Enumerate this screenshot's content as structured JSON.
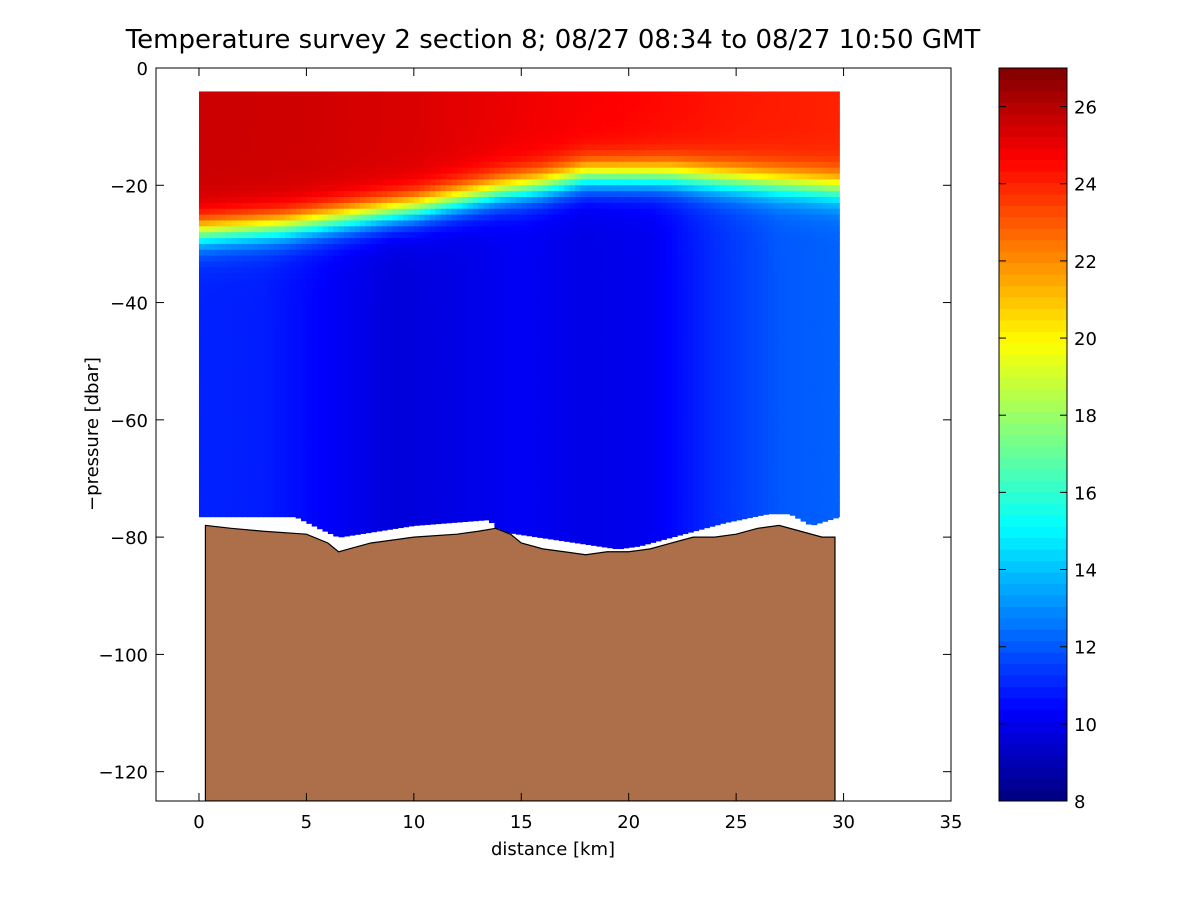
{
  "chart_data": {
    "type": "heatmap",
    "title": "Temperature survey 2 section 8; 08/27 08:34 to 08/27 10:50 GMT",
    "xlabel": "distance [km]",
    "ylabel": "−pressure [dbar]",
    "xlim": [
      -2,
      35
    ],
    "ylim": [
      -125,
      0
    ],
    "x_ticks": [
      0,
      5,
      10,
      15,
      20,
      25,
      30,
      35
    ],
    "x_tick_labels": [
      "0",
      "5",
      "10",
      "15",
      "20",
      "25",
      "30",
      "35"
    ],
    "y_ticks": [
      0,
      -20,
      -40,
      -60,
      -80,
      -100,
      -120
    ],
    "y_tick_labels": [
      "0",
      "−20",
      "−40",
      "−60",
      "−80",
      "−100",
      "−120"
    ],
    "grid": false,
    "colorbar": {
      "range": [
        8,
        27
      ],
      "colormap": "jet",
      "ticks": [
        8,
        10,
        12,
        14,
        16,
        18,
        20,
        22,
        24,
        26
      ],
      "tick_labels": [
        "8",
        "10",
        "12",
        "14",
        "16",
        "18",
        "20",
        "22",
        "24",
        "26"
      ]
    },
    "data_extent": {
      "x": [
        0,
        29.8
      ],
      "y": [
        -82,
        -4
      ]
    },
    "thermocline_depth": {
      "x": [
        0,
        2,
        4,
        6,
        8,
        10,
        12,
        14,
        16,
        18,
        20,
        22,
        24,
        26,
        28,
        29.8
      ],
      "depth": [
        -28,
        -27.5,
        -27,
        -26,
        -25,
        -24,
        -22.5,
        -21,
        -20,
        -18.5,
        -18.5,
        -18.5,
        -19,
        -19.5,
        -20,
        -20.5
      ]
    },
    "surface_temperature": {
      "x": [
        0,
        5,
        10,
        15,
        20,
        25,
        29.8
      ],
      "temp": [
        25.6,
        25.5,
        25.3,
        24.9,
        24.6,
        24.2,
        24.0
      ]
    },
    "deep_temperature": {
      "x": [
        0,
        3,
        6,
        9,
        12,
        15,
        18,
        21,
        24,
        27,
        29.8
      ],
      "temp": [
        11.0,
        10.9,
        10.3,
        9.7,
        9.9,
        10.2,
        9.9,
        10.1,
        11.2,
        12.0,
        12.2
      ]
    },
    "lower_bound": {
      "x": [
        0,
        4.5,
        5.6,
        6.5,
        10,
        13.5,
        14,
        19.5,
        20.5,
        24.5,
        26.5,
        27.5,
        28.5,
        29.8
      ],
      "depth": [
        -76.5,
        -76.5,
        -78.5,
        -80,
        -78,
        -77,
        -79,
        -82,
        -81.5,
        -77.5,
        -76,
        -76,
        -78,
        -76.5
      ]
    },
    "seafloor": {
      "color": "#ad6f4a",
      "bottom_depth": -125,
      "x": [
        0.3,
        1.5,
        3,
        5,
        6,
        6.5,
        7,
        8,
        10,
        12,
        13,
        13.8,
        14.5,
        15,
        16,
        17,
        18,
        19,
        20,
        21,
        22,
        23,
        24,
        25,
        26,
        27,
        28,
        29,
        29.6
      ],
      "depth": [
        -78,
        -78.5,
        -79,
        -79.5,
        -81,
        -82.5,
        -82,
        -81,
        -80,
        -79.5,
        -79,
        -78.5,
        -79.5,
        -81,
        -82,
        -82.5,
        -83,
        -82.5,
        -82.5,
        -82,
        -81,
        -80,
        -80,
        -79.5,
        -78.5,
        -78,
        -79,
        -80,
        -80
      ]
    }
  }
}
